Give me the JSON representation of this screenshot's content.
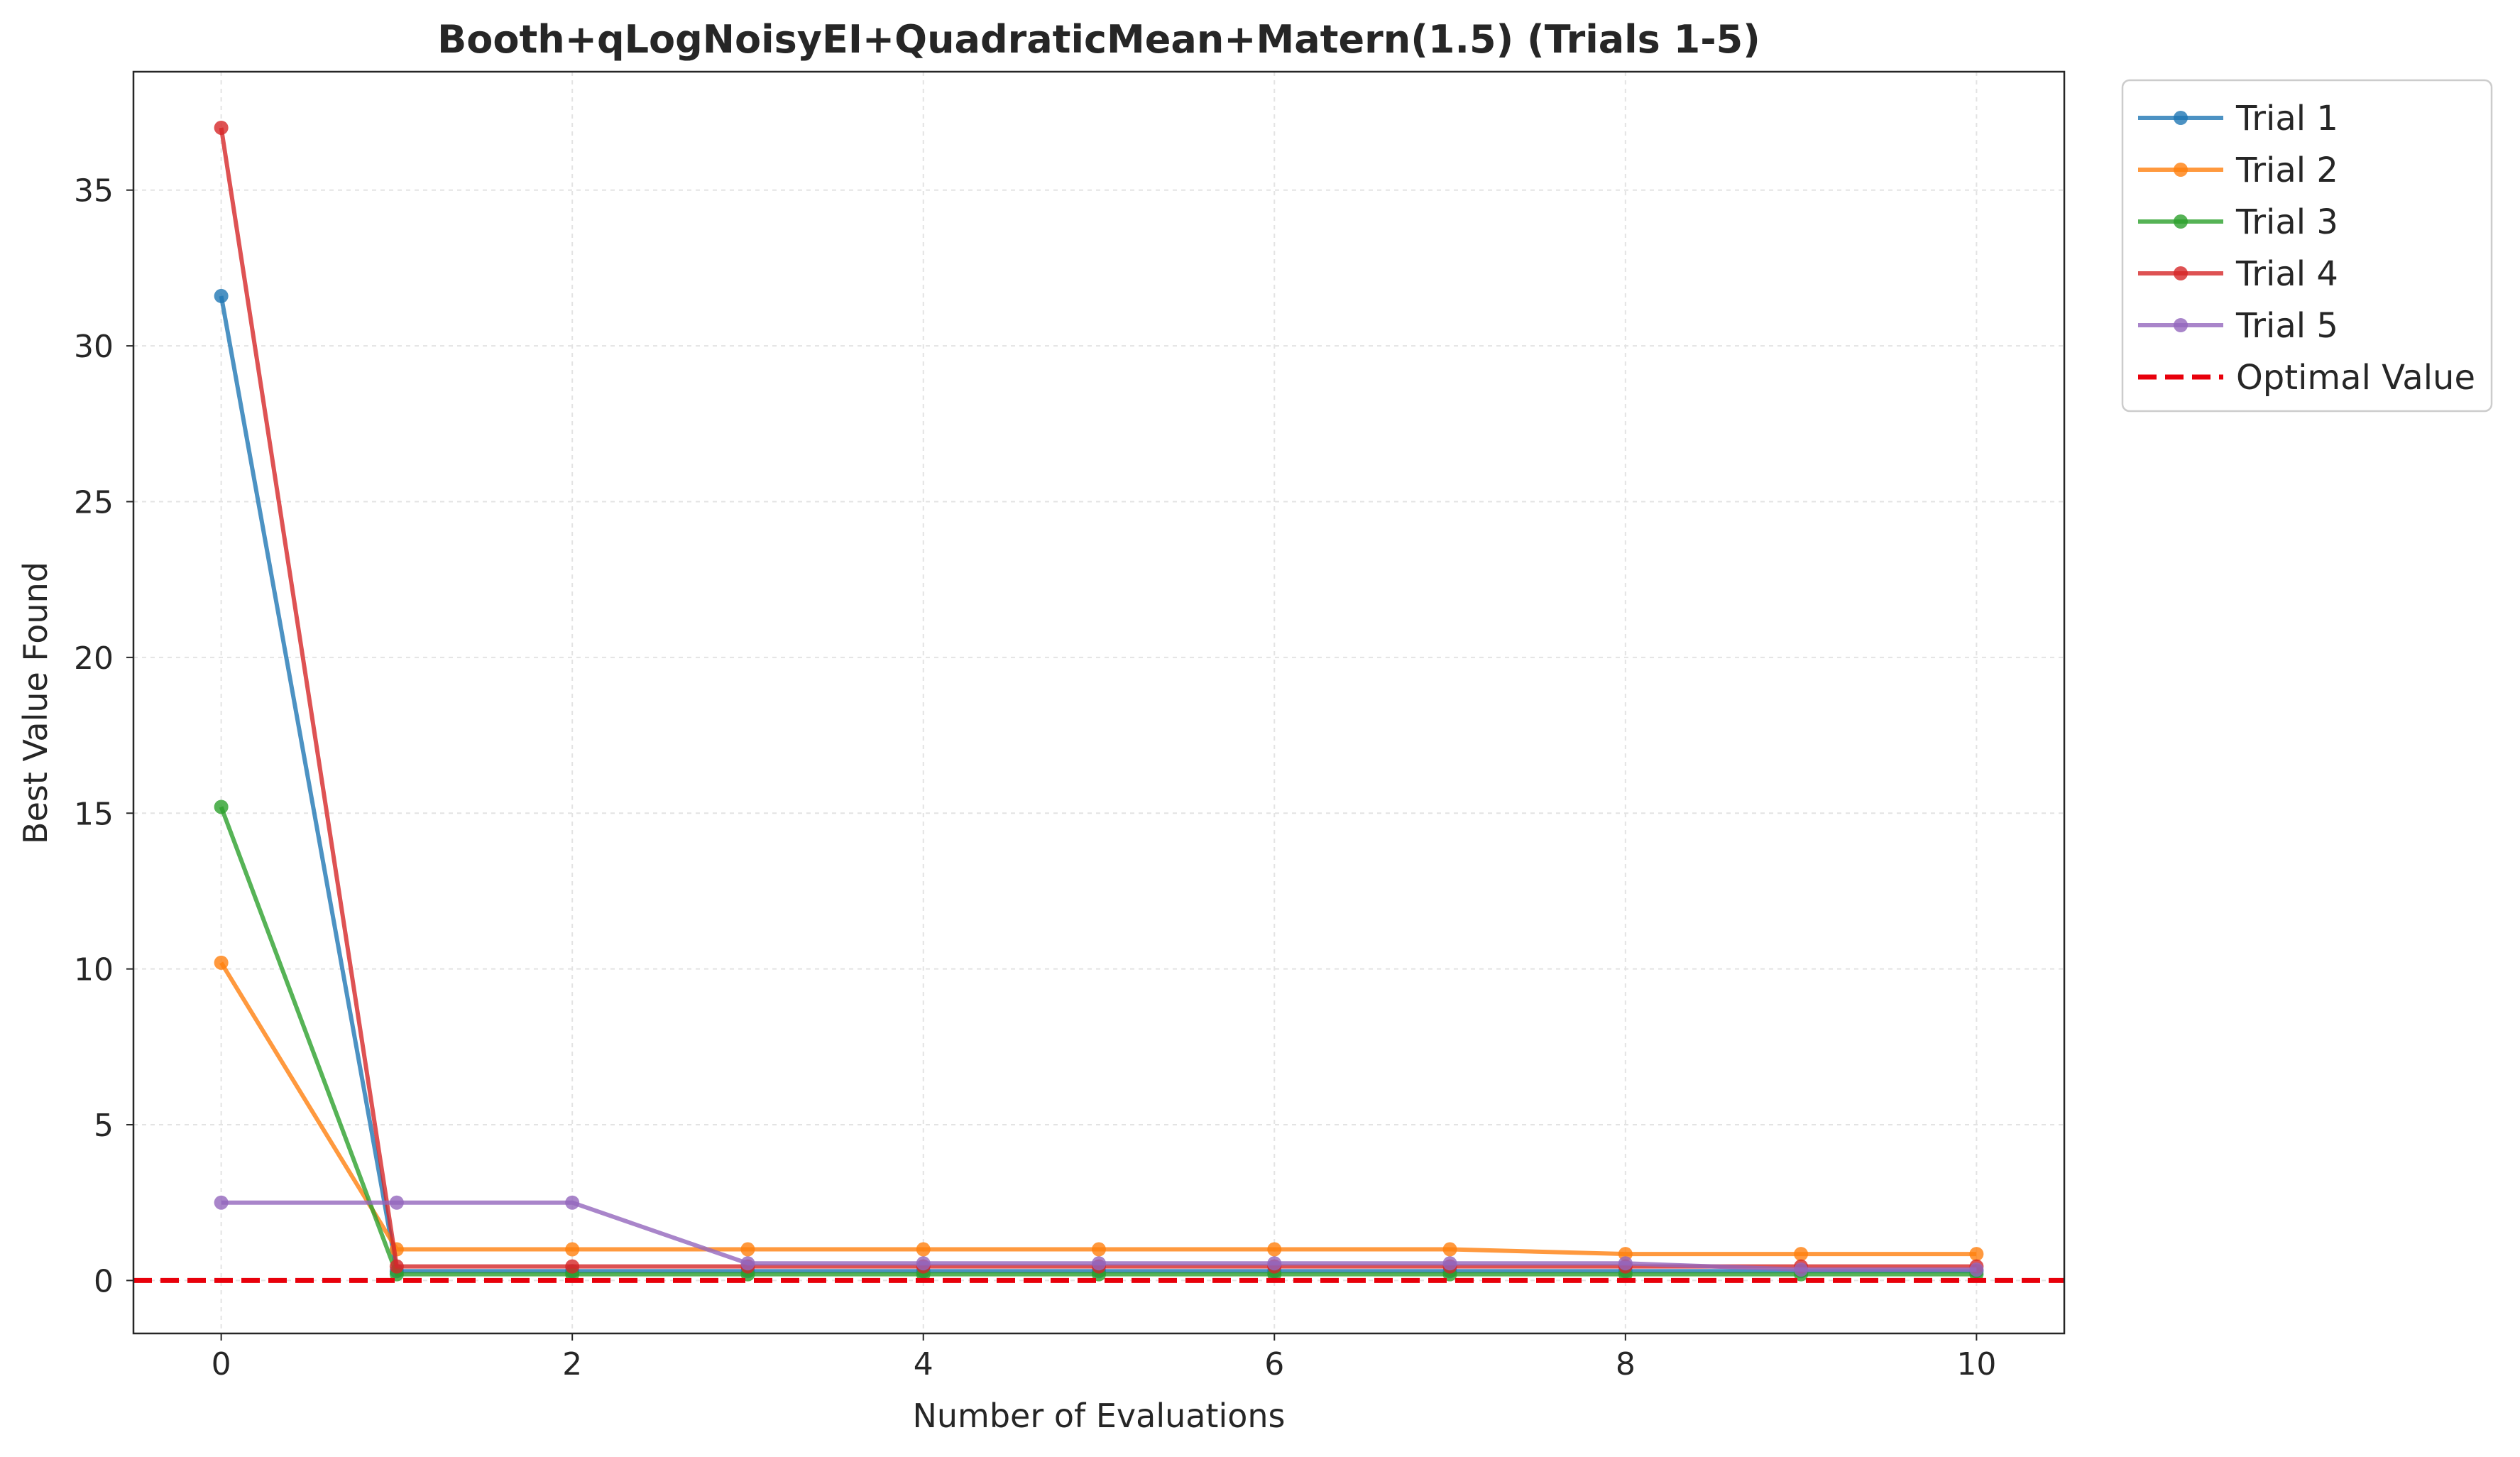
{
  "chart_data": {
    "type": "line",
    "title": "Booth+qLogNoisyEI+QuadraticMean+Matern(1.5) (Trials 1-5)",
    "xlabel": "Number of Evaluations",
    "ylabel": "Best Value Found",
    "xlim": [
      -0.5,
      10.5
    ],
    "ylim": [
      -1.7,
      38.8
    ],
    "xticks": [
      0,
      2,
      4,
      6,
      8,
      10
    ],
    "yticks": [
      0,
      5,
      10,
      15,
      20,
      25,
      30,
      35
    ],
    "grid": true,
    "legend_position": "outside-top-right",
    "x": [
      0,
      1,
      2,
      3,
      4,
      5,
      6,
      7,
      8,
      9,
      10
    ],
    "series": [
      {
        "name": "Trial 1",
        "color": "#1f77b4",
        "values": [
          31.6,
          0.3,
          0.3,
          0.3,
          0.3,
          0.3,
          0.3,
          0.3,
          0.3,
          0.3,
          0.3
        ]
      },
      {
        "name": "Trial 2",
        "color": "#ff7f0e",
        "values": [
          10.2,
          1.0,
          1.0,
          1.0,
          1.0,
          1.0,
          1.0,
          1.0,
          0.85,
          0.85,
          0.85
        ]
      },
      {
        "name": "Trial 3",
        "color": "#2ca02c",
        "values": [
          15.2,
          0.2,
          0.2,
          0.2,
          0.2,
          0.2,
          0.2,
          0.2,
          0.2,
          0.2,
          0.2
        ]
      },
      {
        "name": "Trial 4",
        "color": "#d62728",
        "values": [
          37.0,
          0.45,
          0.45,
          0.45,
          0.45,
          0.45,
          0.45,
          0.45,
          0.45,
          0.45,
          0.45
        ]
      },
      {
        "name": "Trial 5",
        "color": "#9467bd",
        "values": [
          2.5,
          2.5,
          2.5,
          0.55,
          0.55,
          0.55,
          0.55,
          0.55,
          0.55,
          0.35,
          0.35
        ]
      }
    ],
    "reference_line": {
      "name": "Optimal Value",
      "value": 0,
      "color": "#e8000b",
      "style": "dashed"
    }
  }
}
